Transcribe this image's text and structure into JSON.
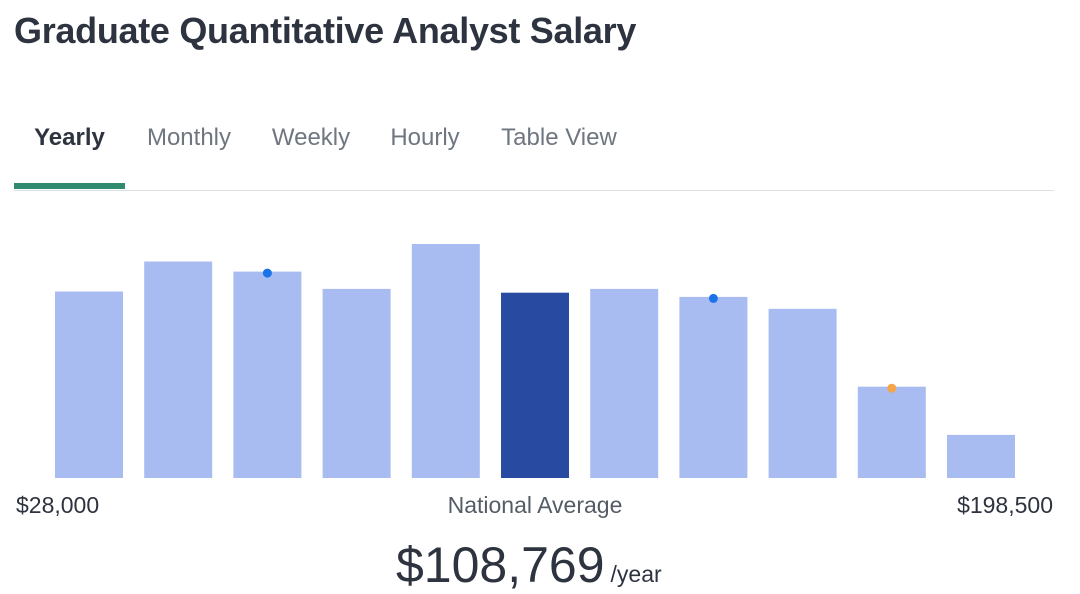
{
  "page": {
    "title": "Graduate Quantitative Analyst Salary"
  },
  "tabs": [
    {
      "label": "Yearly",
      "active": true
    },
    {
      "label": "Monthly",
      "active": false
    },
    {
      "label": "Weekly",
      "active": false
    },
    {
      "label": "Hourly",
      "active": false
    },
    {
      "label": "Table View",
      "active": false
    }
  ],
  "chart_data": {
    "type": "bar",
    "x_min_label": "$28,000",
    "x_max_label": "$198,500",
    "center_label": "National Average",
    "values": [
      0.797,
      0.925,
      0.882,
      0.808,
      1.0,
      0.792,
      0.808,
      0.774,
      0.723,
      0.39,
      0.184
    ],
    "highlight_index": 5,
    "markers": [
      {
        "bar_index": 2,
        "color": "#1a73e8"
      },
      {
        "bar_index": 7,
        "color": "#1a73e8"
      },
      {
        "bar_index": 9,
        "color": "#f5a54a"
      }
    ],
    "colors": {
      "bar": "#a9bcf2",
      "highlight": "#284aa1"
    }
  },
  "salary": {
    "amount": "$108,769",
    "unit": "/year"
  }
}
